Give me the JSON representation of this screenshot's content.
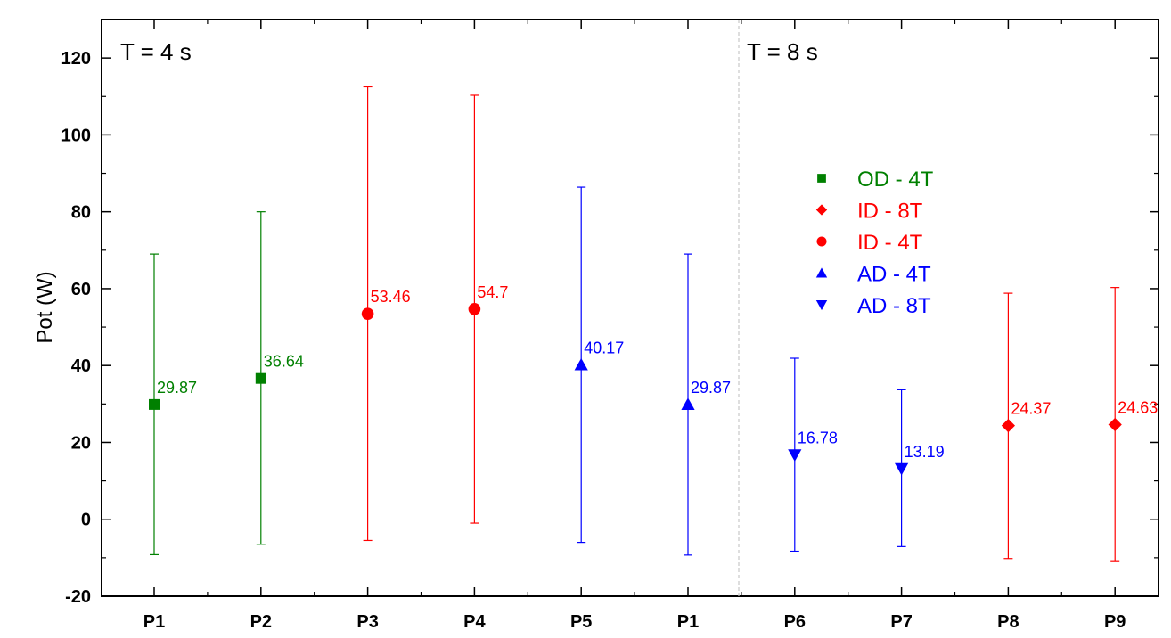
{
  "chart_data": {
    "type": "scatter",
    "title": "",
    "xlabel": "",
    "ylabel": "Pot (W)",
    "ylim": [
      -20,
      130
    ],
    "yticks": [
      -20,
      0,
      20,
      40,
      60,
      80,
      100,
      120
    ],
    "grid": false,
    "legend_position": "upper-right",
    "categories": [
      "P1",
      "P2",
      "P3",
      "P4",
      "P5",
      "P1",
      "P6",
      "P7",
      "P8",
      "P9"
    ],
    "panels": [
      {
        "label": "T = 4 s",
        "categories": [
          "P1",
          "P2",
          "P3",
          "P4",
          "P5",
          "P1"
        ]
      },
      {
        "label": "T = 8 s",
        "categories": [
          "P6",
          "P7",
          "P8",
          "P9"
        ]
      }
    ],
    "series": [
      {
        "name": "OD - 4T",
        "marker": "square",
        "color": "#008000",
        "points": [
          {
            "cat_index": 0,
            "y": 29.87,
            "lower": -9.2,
            "upper": 69.0,
            "label": "29.87"
          },
          {
            "cat_index": 1,
            "y": 36.64,
            "lower": -6.5,
            "upper": 80.0,
            "label": "36.64"
          }
        ]
      },
      {
        "name": "ID - 8T",
        "marker": "diamond",
        "color": "#ff0000",
        "points": [
          {
            "cat_index": 8,
            "y": 24.37,
            "lower": -10.2,
            "upper": 58.8,
            "label": "24.37"
          },
          {
            "cat_index": 9,
            "y": 24.63,
            "lower": -11.0,
            "upper": 60.3,
            "label": "24.63"
          }
        ]
      },
      {
        "name": "ID - 4T",
        "marker": "circle",
        "color": "#ff0000",
        "points": [
          {
            "cat_index": 2,
            "y": 53.46,
            "lower": -5.5,
            "upper": 112.5,
            "label": "53.46"
          },
          {
            "cat_index": 3,
            "y": 54.7,
            "lower": -1.0,
            "upper": 110.3,
            "label": "54.7"
          }
        ]
      },
      {
        "name": "AD - 4T",
        "marker": "triangle-up",
        "color": "#0000ff",
        "points": [
          {
            "cat_index": 4,
            "y": 40.17,
            "lower": -6.0,
            "upper": 86.4,
            "label": "40.17"
          },
          {
            "cat_index": 5,
            "y": 29.87,
            "lower": -9.3,
            "upper": 69.0,
            "label": "29.87"
          }
        ]
      },
      {
        "name": "AD - 8T",
        "marker": "triangle-down",
        "color": "#0000ff",
        "points": [
          {
            "cat_index": 6,
            "y": 16.78,
            "lower": -8.3,
            "upper": 41.9,
            "label": "16.78"
          },
          {
            "cat_index": 7,
            "y": 13.19,
            "lower": -7.1,
            "upper": 33.7,
            "label": "13.19"
          }
        ]
      }
    ]
  }
}
